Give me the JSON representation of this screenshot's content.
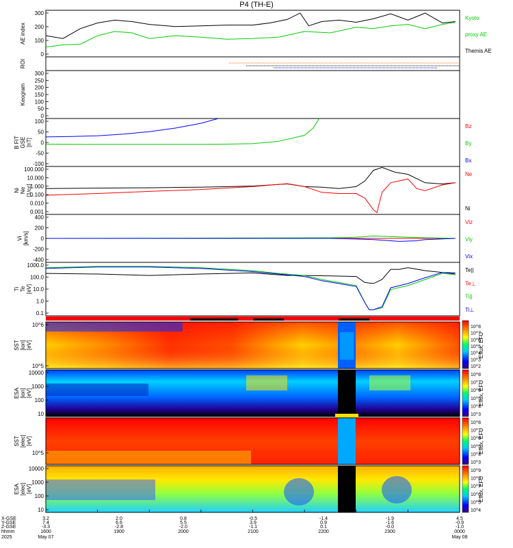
{
  "figure": {
    "title": "P4 (TH-E)"
  },
  "chart_data": [
    {
      "type": "line",
      "panel": "ae",
      "ylabel": "AE index",
      "ylim": [
        -30,
        300
      ],
      "yticks": [
        "300",
        "200",
        "100",
        "0"
      ],
      "legend": [
        "Kyoto",
        "proxy AE",
        "Themis AE"
      ],
      "series": [
        {
          "name": "Themis AE",
          "color": "#000000",
          "x": [
            "16:00",
            "16:20",
            "16:40",
            "17:00",
            "17:20",
            "17:40",
            "18:00",
            "18:30",
            "19:00",
            "19:30",
            "20:00",
            "20:20",
            "20:40",
            "20:55",
            "21:05",
            "21:20",
            "21:40",
            "22:00",
            "22:20",
            "22:40",
            "23:00",
            "23:20",
            "23:40",
            "23:55"
          ],
          "values": [
            120,
            100,
            170,
            210,
            230,
            220,
            200,
            185,
            190,
            195,
            195,
            210,
            235,
            280,
            190,
            220,
            230,
            215,
            240,
            275,
            230,
            280,
            210,
            220
          ]
        },
        {
          "name": "proxy AE",
          "color": "#00cc00",
          "x": [
            "16:00",
            "16:20",
            "16:40",
            "17:00",
            "17:20",
            "17:40",
            "18:00",
            "18:30",
            "19:00",
            "19:30",
            "20:00",
            "20:30",
            "21:00",
            "21:30",
            "22:00",
            "22:20",
            "22:40",
            "23:00",
            "23:20",
            "23:40",
            "23:55"
          ],
          "values": [
            40,
            55,
            60,
            120,
            150,
            140,
            100,
            120,
            110,
            95,
            100,
            110,
            150,
            140,
            180,
            170,
            190,
            200,
            170,
            200,
            215
          ]
        }
      ]
    },
    {
      "type": "line",
      "panel": "roi",
      "ylabel": "ROI"
    },
    {
      "type": "heatmap",
      "panel": "keogram",
      "ylabel": "Keogram",
      "ylim": [
        0,
        300
      ],
      "yticks": [
        "300",
        "250",
        "200",
        "150",
        "100",
        "50",
        "0"
      ]
    },
    {
      "type": "line",
      "panel": "bfield",
      "ylabel": [
        "B FIT",
        "GSE",
        "[nT]"
      ],
      "ylim": [
        -100,
        100
      ],
      "yticks": [
        "100",
        "50",
        "0",
        "-50",
        "-100"
      ],
      "legend": [
        "Bz",
        "By",
        "Bx"
      ],
      "series": [
        {
          "name": "Bz",
          "color": "#ff0000",
          "x": [],
          "values": []
        },
        {
          "name": "By",
          "color": "#00cc00",
          "x": [
            "16:00",
            "17:00",
            "18:00",
            "19:00",
            "19:30",
            "20:00",
            "20:30",
            "21:00",
            "21:10",
            "21:17"
          ],
          "values": [
            -7,
            -8,
            -8,
            -8,
            -7,
            -5,
            5,
            30,
            60,
            100
          ]
        },
        {
          "name": "Bx",
          "color": "#0000ff",
          "x": [
            "16:00",
            "16:30",
            "17:00",
            "17:30",
            "18:00",
            "18:30",
            "19:00",
            "19:20"
          ],
          "values": [
            23,
            25,
            28,
            35,
            45,
            60,
            80,
            100
          ]
        }
      ]
    },
    {
      "type": "line",
      "panel": "density",
      "ylabel": [
        "Ni",
        "Ne",
        "[1/cc]"
      ],
      "ylim": [
        0.001,
        100
      ],
      "yscale": "log",
      "yticks": [
        "100.000",
        "10.000",
        "1.000",
        "0.100",
        "0.010",
        "0.001"
      ],
      "legend": [
        "Ne",
        "Ni"
      ],
      "series": [
        {
          "name": "Ni",
          "color": "#000000",
          "x": [
            "16:00",
            "17:00",
            "18:00",
            "19:00",
            "20:00",
            "20:40",
            "21:00",
            "21:20",
            "21:40",
            "22:00",
            "22:10",
            "22:20",
            "22:30",
            "22:45",
            "23:00",
            "23:20",
            "23:40",
            "23:55"
          ],
          "values": [
            0.5,
            0.55,
            0.6,
            0.7,
            0.9,
            1.5,
            0.8,
            0.7,
            0.5,
            0.8,
            3,
            40,
            80,
            25,
            15,
            2,
            1.5,
            2.0
          ]
        },
        {
          "name": "Ne",
          "color": "#ff0000",
          "x": [
            "16:00",
            "17:00",
            "18:00",
            "19:00",
            "20:00",
            "20:40",
            "21:00",
            "21:20",
            "21:40",
            "22:00",
            "22:10",
            "22:20",
            "22:24",
            "22:30",
            "22:40",
            "23:00",
            "23:10",
            "23:20",
            "23:40",
            "23:55"
          ],
          "values": [
            0.1,
            0.15,
            0.25,
            0.4,
            0.8,
            1.6,
            0.8,
            0.2,
            0.15,
            0.15,
            0.05,
            0.003,
            0.0015,
            0.2,
            2,
            5,
            0.5,
            0.3,
            1.2,
            2.0
          ]
        }
      ]
    },
    {
      "type": "line",
      "panel": "velocity",
      "ylabel": [
        "Vi",
        "[km/s]"
      ],
      "ylim": [
        -400,
        400
      ],
      "yticks": [
        "400",
        "200",
        "0",
        "-200",
        "-400"
      ],
      "legend": [
        "Viz",
        "Viy",
        "Vix"
      ],
      "series": [
        {
          "name": "Viz",
          "color": "#ff0000",
          "x": [
            "16:00",
            "23:55"
          ],
          "values": [
            0,
            0
          ]
        },
        {
          "name": "Viy",
          "color": "#00cc00",
          "x": [
            "16:00",
            "21:30",
            "22:00",
            "22:20",
            "22:40",
            "23:00",
            "23:20",
            "23:55"
          ],
          "values": [
            0,
            10,
            20,
            40,
            30,
            20,
            10,
            0
          ]
        },
        {
          "name": "Vix",
          "color": "#0000ff",
          "x": [
            "16:00",
            "21:30",
            "22:00",
            "22:20",
            "22:30",
            "22:50",
            "23:10",
            "23:20",
            "23:55"
          ],
          "values": [
            0,
            0,
            -10,
            -20,
            -30,
            -50,
            -40,
            -20,
            0
          ]
        }
      ]
    },
    {
      "type": "line",
      "panel": "temperature",
      "ylabel": [
        "Ti",
        "Te",
        "[eV]"
      ],
      "ylim": [
        0.05,
        10000
      ],
      "yscale": "log",
      "yticks": [
        "1000.0",
        "100.0",
        "10.0",
        "1.0",
        "0.1"
      ],
      "legend": [
        "Te||",
        "Te⊥",
        "Ti||",
        "Ti⊥"
      ],
      "series": [
        {
          "name": "Te||",
          "color": "#000000",
          "x": [
            "16:00",
            "17:00",
            "18:00",
            "19:00",
            "20:00",
            "20:40",
            "21:00",
            "21:30",
            "22:00",
            "22:10",
            "22:20",
            "22:30",
            "22:40",
            "22:50",
            "23:00",
            "23:20",
            "23:40",
            "23:55"
          ],
          "values": [
            800,
            700,
            500,
            700,
            900,
            500,
            500,
            450,
            400,
            100,
            80,
            200,
            2000,
            2000,
            3000,
            1500,
            1000,
            900
          ]
        },
        {
          "name": "Ti||",
          "color": "#00cc00",
          "x": [
            "16:00",
            "17:00",
            "18:00",
            "19:00",
            "20:00",
            "20:30",
            "21:00",
            "21:20",
            "21:40",
            "22:00",
            "22:10",
            "22:15",
            "22:20",
            "22:30",
            "22:40",
            "23:00",
            "23:20",
            "23:40",
            "23:55"
          ],
          "values": [
            3000,
            4000,
            4000,
            3000,
            1500,
            800,
            500,
            200,
            100,
            50,
            1,
            0.2,
            0.2,
            0.3,
            20,
            50,
            200,
            800,
            600
          ]
        },
        {
          "name": "Ti⊥",
          "color": "#0000ff",
          "x": [
            "16:00",
            "17:00",
            "18:00",
            "19:00",
            "20:00",
            "20:30",
            "21:00",
            "21:20",
            "21:40",
            "22:00",
            "22:10",
            "22:15",
            "22:20",
            "22:30",
            "22:40",
            "23:00",
            "23:20",
            "23:40",
            "23:55"
          ],
          "values": [
            2500,
            3500,
            3500,
            2500,
            1200,
            700,
            400,
            150,
            80,
            40,
            1,
            0.2,
            0.2,
            0.4,
            30,
            80,
            300,
            1000,
            700
          ]
        }
      ]
    },
    {
      "type": "heatmap",
      "panel": "sst_ion",
      "ylabel": [
        "SST",
        "[ion]",
        "[eV]"
      ],
      "yticks": [
        "10^6",
        "10^5"
      ],
      "colorbar": {
        "label": "Eflux, EFU",
        "ticks": [
          "10^8",
          "10^7",
          "10^6",
          "10^5",
          "10^4",
          "10^3",
          "10^2"
        ]
      }
    },
    {
      "type": "heatmap",
      "panel": "esa_ion",
      "ylabel": [
        "ESA",
        "[ion]",
        "[eV]"
      ],
      "yticks": [
        "10000",
        "1000",
        "100",
        "10"
      ],
      "colorbar": {
        "label": "Eflux, EFU",
        "ticks": [
          "10^8",
          "10^7",
          "10^6",
          "10^5",
          "10^4",
          "10^3"
        ]
      }
    },
    {
      "type": "heatmap",
      "panel": "sst_elec",
      "ylabel": [
        "SST",
        "[elec]",
        "[eV]"
      ],
      "yticks": [
        "10^5"
      ],
      "colorbar": {
        "label": "Eflux, EFU",
        "ticks": [
          "10^8",
          "10^7",
          "10^6",
          "10^5",
          "10^4",
          "10^3"
        ]
      }
    },
    {
      "type": "heatmap",
      "panel": "esa_elec",
      "ylabel": [
        "ESA",
        "[elec]",
        "[eV]"
      ],
      "yticks": [
        "10000",
        "1000",
        "100",
        "10"
      ],
      "colorbar": {
        "label": "Eflux, EFU",
        "ticks": [
          "10^9",
          "10^8",
          "10^7",
          "10^6",
          "10^5",
          "10^4"
        ]
      }
    }
  ],
  "ephemeris": {
    "row_labels": [
      "X-GSE",
      "Y-GSE",
      "Z-GSE",
      "hhmm",
      "2025"
    ],
    "columns": [
      {
        "time": "1600",
        "x": "3.2",
        "y": "7.4",
        "z": "-3.3",
        "date": "May 07"
      },
      {
        "time": "1900",
        "x": "2.0",
        "y": "6.6",
        "z": "-2.8",
        "date": ""
      },
      {
        "time": "2000",
        "x": "0.8",
        "y": "5.5",
        "z": "-2.0",
        "date": ""
      },
      {
        "time": "2100",
        "x": "-0.5",
        "y": "3.9",
        "z": "-1.1",
        "date": ""
      },
      {
        "time": "2200",
        "x": "-1.4",
        "y": "0.9",
        "z": "0.1",
        "date": ""
      },
      {
        "time": "2300",
        "x": "-1.9",
        "y": "-1.6",
        "z": "-0.0",
        "date": ""
      },
      {
        "time": "0000",
        "x": "4.5",
        "y": "-0.9",
        "z": "-1.0",
        "date": "May 08"
      }
    ]
  }
}
